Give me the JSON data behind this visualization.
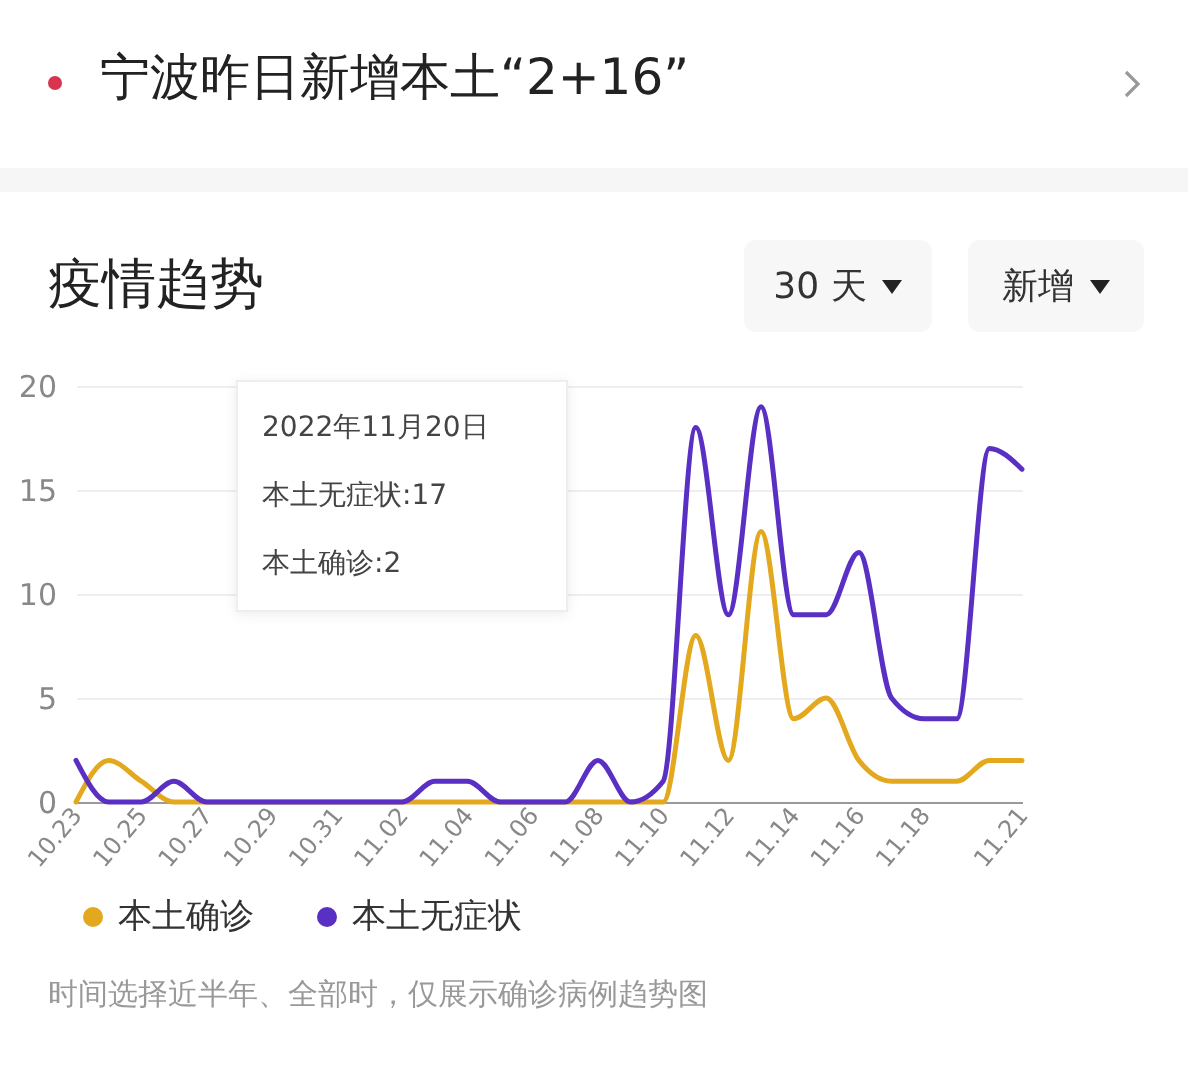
{
  "chart_data": {
    "type": "line",
    "title": "宁波昨日新增本土“2+16”",
    "subtitle": "疫情趋势",
    "categories": [
      "10.23",
      null,
      "10.25",
      null,
      "10.27",
      null,
      "10.29",
      null,
      "10.31",
      null,
      "11.02",
      null,
      "11.04",
      null,
      "11.06",
      null,
      "11.08",
      null,
      "11.10",
      null,
      "11.12",
      null,
      "11.14",
      null,
      "11.16",
      null,
      "11.18",
      null,
      null,
      "11.21"
    ],
    "series": [
      {
        "name": "本土确诊",
        "color": "#e3a81e",
        "values": [
          0,
          2,
          1,
          0,
          0,
          0,
          0,
          0,
          0,
          0,
          0,
          0,
          0,
          0,
          0,
          0,
          0,
          0,
          0,
          8,
          2,
          13,
          4,
          5,
          2,
          1,
          1,
          1,
          2,
          2
        ]
      },
      {
        "name": "本土无症状",
        "color": "#5a2fc4",
        "values": [
          2,
          0,
          0,
          1,
          0,
          0,
          0,
          0,
          0,
          0,
          0,
          1,
          1,
          0,
          0,
          0,
          2,
          0,
          1,
          18,
          9,
          19,
          9,
          9,
          12,
          5,
          4,
          4,
          17,
          16
        ]
      }
    ],
    "ylim": [
      0,
      20
    ],
    "yticks": [
      0,
      5,
      10,
      15,
      20
    ],
    "grid": "y",
    "legend": "bottom",
    "annotations": [
      "30 天",
      "新增",
      "2022年11月20日",
      "本土无症状:17",
      "本土确诊:2",
      "时间选择近半年、全部时，仅展示确诊病例趋势图"
    ]
  }
}
